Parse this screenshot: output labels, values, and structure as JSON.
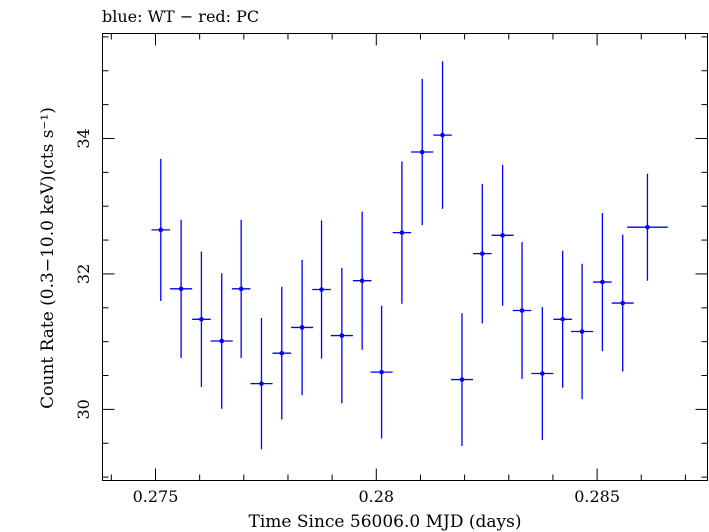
{
  "chart_data": {
    "type": "scatter",
    "title": "blue: WT − red: PC",
    "xlabel": "Time Since 56006.0 MJD (days)",
    "ylabel": "Count Rate (0.3−10.0 keV)(cts s⁻¹)",
    "xlim": [
      0.2738,
      0.2875
    ],
    "ylim": [
      28.95,
      35.55
    ],
    "xticks": [
      0.275,
      0.28,
      0.285
    ],
    "xtick_labels": [
      "0.275",
      "0.28",
      "0.285"
    ],
    "yticks": [
      30,
      32,
      34
    ],
    "ytick_labels": [
      "30",
      "32",
      "34"
    ],
    "grid": false,
    "series": [
      {
        "color": "#0000ff",
        "points": [
          {
            "x": 0.27512,
            "xerr": 0.00021,
            "y": 32.65,
            "yerr": 1.05
          },
          {
            "x": 0.27558,
            "xerr": 0.00025,
            "y": 31.78,
            "yerr": 1.02
          },
          {
            "x": 0.27604,
            "xerr": 0.00021,
            "y": 31.33,
            "yerr": 1.0
          },
          {
            "x": 0.2765,
            "xerr": 0.00025,
            "y": 31.01,
            "yerr": 1.0
          },
          {
            "x": 0.27694,
            "xerr": 0.00021,
            "y": 31.78,
            "yerr": 1.02
          },
          {
            "x": 0.2774,
            "xerr": 0.00025,
            "y": 30.38,
            "yerr": 0.97
          },
          {
            "x": 0.27786,
            "xerr": 0.00021,
            "y": 30.83,
            "yerr": 0.98
          },
          {
            "x": 0.27832,
            "xerr": 0.00025,
            "y": 31.21,
            "yerr": 1.0
          },
          {
            "x": 0.27876,
            "xerr": 0.00021,
            "y": 31.77,
            "yerr": 1.02
          },
          {
            "x": 0.27922,
            "xerr": 0.00025,
            "y": 31.09,
            "yerr": 1.0
          },
          {
            "x": 0.27968,
            "xerr": 0.00021,
            "y": 31.9,
            "yerr": 1.02
          },
          {
            "x": 0.28012,
            "xerr": 0.00025,
            "y": 30.55,
            "yerr": 0.98
          },
          {
            "x": 0.28058,
            "xerr": 0.00021,
            "y": 32.61,
            "yerr": 1.05
          },
          {
            "x": 0.28104,
            "xerr": 0.00025,
            "y": 33.8,
            "yerr": 1.08
          },
          {
            "x": 0.2815,
            "xerr": 0.00021,
            "y": 34.05,
            "yerr": 1.09
          },
          {
            "x": 0.28194,
            "xerr": 0.00025,
            "y": 30.44,
            "yerr": 0.98
          },
          {
            "x": 0.2824,
            "xerr": 0.00021,
            "y": 32.3,
            "yerr": 1.03
          },
          {
            "x": 0.28286,
            "xerr": 0.00025,
            "y": 32.57,
            "yerr": 1.04
          },
          {
            "x": 0.2833,
            "xerr": 0.00021,
            "y": 31.46,
            "yerr": 1.01
          },
          {
            "x": 0.28376,
            "xerr": 0.00025,
            "y": 30.53,
            "yerr": 0.98
          },
          {
            "x": 0.28422,
            "xerr": 0.00021,
            "y": 31.33,
            "yerr": 1.01
          },
          {
            "x": 0.28466,
            "xerr": 0.00025,
            "y": 31.15,
            "yerr": 1.0
          },
          {
            "x": 0.28512,
            "xerr": 0.00021,
            "y": 31.88,
            "yerr": 1.02
          },
          {
            "x": 0.28558,
            "xerr": 0.00025,
            "y": 31.57,
            "yerr": 1.01
          },
          {
            "x": 0.28614,
            "xerr": 0.00046,
            "y": 32.69,
            "yerr": 0.79
          }
        ]
      }
    ]
  }
}
